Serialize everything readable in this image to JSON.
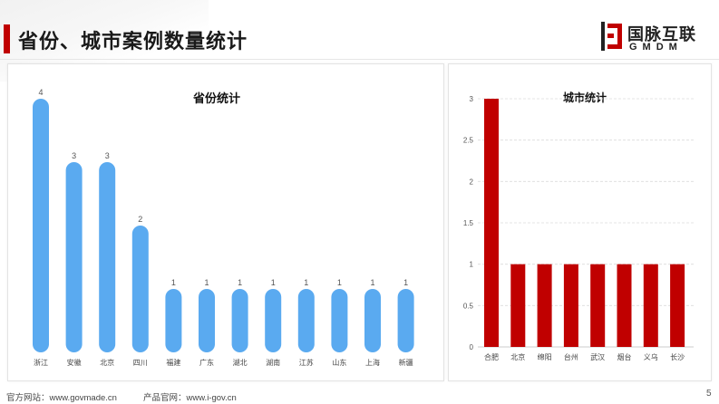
{
  "header": {
    "title": "省份、城市案例数量统计",
    "logo_cn": "国脉互联",
    "logo_en": "GMDM"
  },
  "chart_data": [
    {
      "type": "bar",
      "title": "省份统计",
      "categories": [
        "浙江",
        "安徽",
        "北京",
        "四川",
        "福建",
        "广东",
        "湖北",
        "湖南",
        "江苏",
        "山东",
        "上海",
        "新疆"
      ],
      "values": [
        4,
        3,
        3,
        2,
        1,
        1,
        1,
        1,
        1,
        1,
        1,
        1
      ],
      "ylim": [
        0,
        4
      ],
      "color": "#5aaaf0",
      "data_labels": true,
      "grid": false
    },
    {
      "type": "bar",
      "title": "城市统计",
      "categories": [
        "合肥",
        "北京",
        "绵阳",
        "台州",
        "武汉",
        "烟台",
        "义乌",
        "长沙"
      ],
      "values": [
        3,
        1,
        1,
        1,
        1,
        1,
        1,
        1
      ],
      "ylim": [
        0,
        3
      ],
      "yticks": [
        "0",
        "0.5",
        "1",
        "1.5",
        "2",
        "2.5",
        "3"
      ],
      "color": "#c00000",
      "grid": true
    }
  ],
  "footer": {
    "website": "官方网站：www.govmade.cn",
    "product_site": "产品官网：www.i-gov.cn",
    "page_number": "5"
  }
}
